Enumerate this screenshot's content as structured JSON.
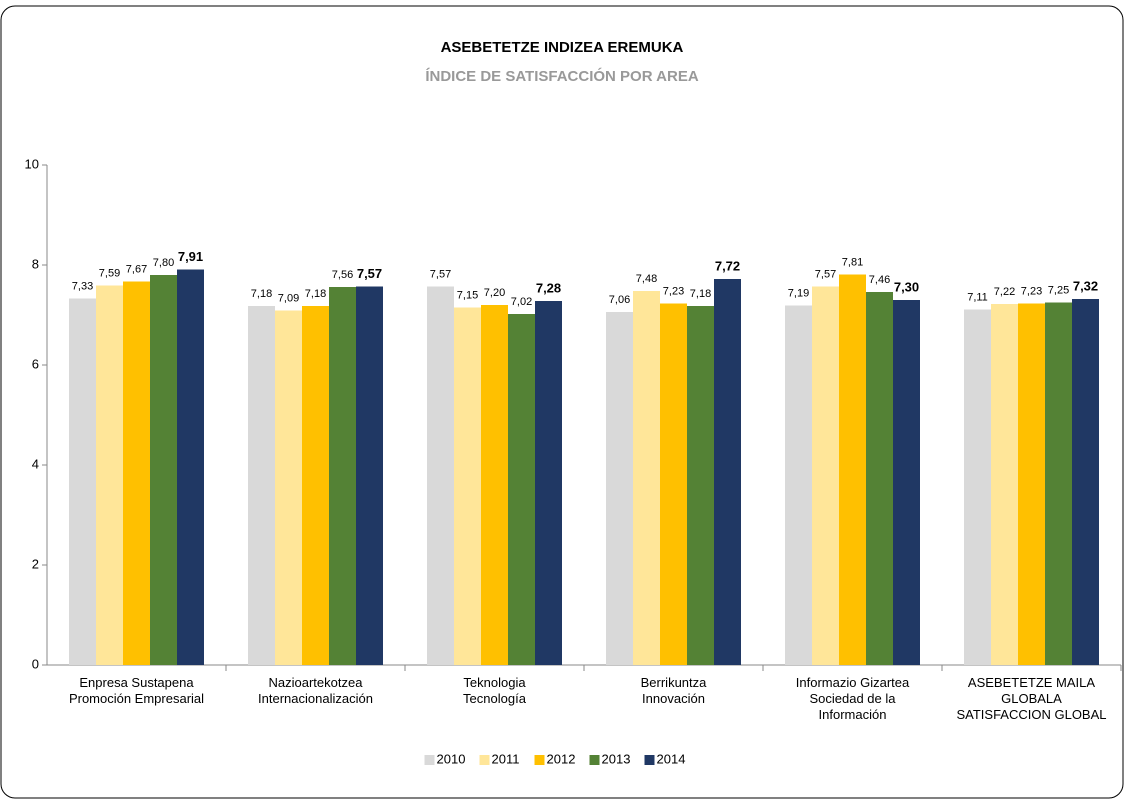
{
  "chart_data": {
    "type": "bar",
    "title": "ASEBETETZE INDIZEA EREMUKA",
    "subtitle": "ÍNDICE DE SATISFACCIÓN POR AREA",
    "categories": [
      "Enpresa Sustapena\nPromoción Empresarial",
      "Nazioartekotzea\nInternacionalización",
      "Teknologia\nTecnología",
      "Berrikuntza\nInnovación",
      "Informazio Gizartea\nSociedad de la\nInformación",
      "ASEBETETZE MAILA\nGLOBALA\nSATISFACCION GLOBAL"
    ],
    "series": [
      {
        "name": "2010",
        "color": "#d9d9d9",
        "values": [
          7.33,
          7.18,
          7.57,
          7.06,
          7.19,
          7.11
        ],
        "value_labels": [
          "7,33",
          "7,18",
          "7,57",
          "7,06",
          "7,19",
          "7,11"
        ]
      },
      {
        "name": "2011",
        "color": "#ffe699",
        "values": [
          7.59,
          7.09,
          7.15,
          7.48,
          7.57,
          7.22
        ],
        "value_labels": [
          "7,59",
          "7,09",
          "7,15",
          "7,48",
          "7,57",
          "7,22"
        ]
      },
      {
        "name": "2012",
        "color": "#ffc000",
        "values": [
          7.67,
          7.18,
          7.2,
          7.23,
          7.81,
          7.23
        ],
        "value_labels": [
          "7,67",
          "7,18",
          "7,20",
          "7,23",
          "7,81",
          "7,23"
        ]
      },
      {
        "name": "2013",
        "color": "#548235",
        "values": [
          7.8,
          7.56,
          7.02,
          7.18,
          7.46,
          7.25
        ],
        "value_labels": [
          "7,80",
          "7,56",
          "7,02",
          "7,18",
          "7,46",
          "7,25"
        ]
      },
      {
        "name": "2014",
        "color": "#203864",
        "values": [
          7.91,
          7.57,
          7.28,
          7.72,
          7.3,
          7.32
        ],
        "value_labels": [
          "7,91",
          "7,57",
          "7,28",
          "7,72",
          "7,30",
          "7,32"
        ]
      }
    ],
    "ylim": [
      0,
      10
    ],
    "yticks": [
      0,
      2,
      4,
      6,
      8,
      10
    ],
    "grid": false,
    "legend": "bottom"
  }
}
